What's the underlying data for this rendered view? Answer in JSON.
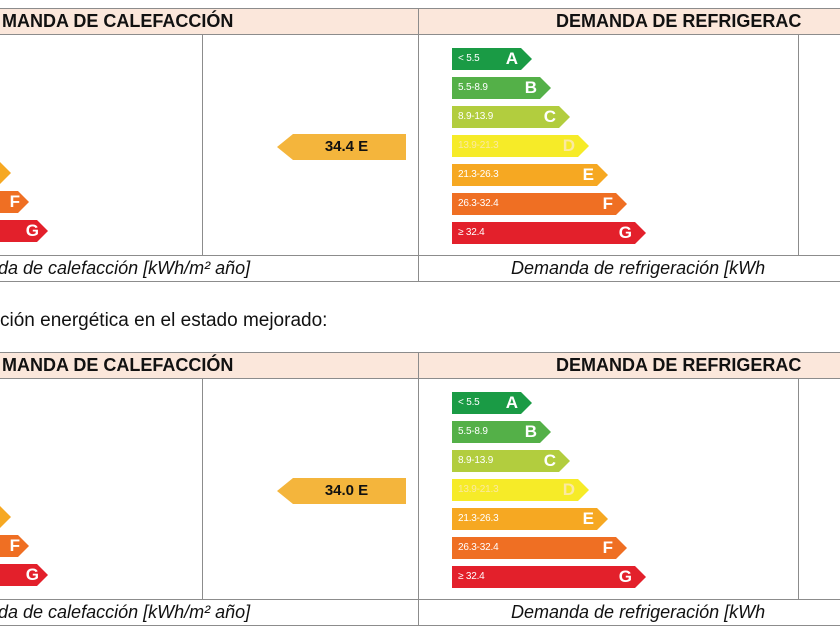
{
  "caption": "ción energética en el estado mejorado:",
  "colors": {
    "A": "#1a9b45",
    "B": "#54b048",
    "C": "#b2cd3e",
    "D": "#f6eb28",
    "E": "#f6a822",
    "F": "#ef6f23",
    "G": "#e3202b",
    "header_bg": "#fbe7db",
    "pointer": "#f4b53c"
  },
  "tables": [
    {
      "heating": {
        "header": "MANDA DE CALEFACCIÓN",
        "value": "34.4 E",
        "visible_letters": [
          {
            "letter": "",
            "color": "#f6eb28"
          },
          {
            "letter": "F",
            "color": "#ef6f23"
          },
          {
            "letter": "G",
            "color": "#e3202b"
          }
        ],
        "footer": "da de calefacción [kWh/m² año]"
      },
      "cooling": {
        "header": "DEMANDA DE REFRIGERAC",
        "scale": [
          {
            "range": "< 5.5",
            "letter": "A"
          },
          {
            "range": "5.5-8.9",
            "letter": "B"
          },
          {
            "range": "8.9-13.9",
            "letter": "C"
          },
          {
            "range": "13.9-21.3",
            "letter": "D"
          },
          {
            "range": "21.3-26.3",
            "letter": "E"
          },
          {
            "range": "26.3-32.4",
            "letter": "F"
          },
          {
            "range": "≥ 32.4",
            "letter": "G"
          }
        ],
        "footer": "Demanda de refrigeración [kWh"
      }
    },
    {
      "heating": {
        "header": "MANDA DE CALEFACCIÓN",
        "value": "34.0 E",
        "visible_letters": [
          {
            "letter": "",
            "color": "#f6eb28"
          },
          {
            "letter": "F",
            "color": "#ef6f23"
          },
          {
            "letter": "G",
            "color": "#e3202b"
          }
        ],
        "footer": "da de calefacción [kWh/m² año]"
      },
      "cooling": {
        "header": "DEMANDA DE REFRIGERAC",
        "scale": [
          {
            "range": "< 5.5",
            "letter": "A"
          },
          {
            "range": "5.5-8.9",
            "letter": "B"
          },
          {
            "range": "8.9-13.9",
            "letter": "C"
          },
          {
            "range": "13.9-21.3",
            "letter": "D"
          },
          {
            "range": "21.3-26.3",
            "letter": "E"
          },
          {
            "range": "26.3-32.4",
            "letter": "F"
          },
          {
            "range": "≥ 32.4",
            "letter": "G"
          }
        ],
        "footer": "Demanda de refrigeración [kWh"
      }
    }
  ]
}
